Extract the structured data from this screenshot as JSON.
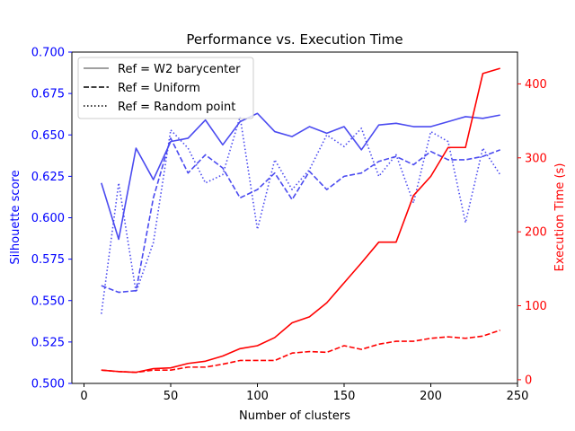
{
  "chart_data": {
    "type": "line",
    "title": "Performance vs. Execution Time",
    "xlabel": "Number of clusters",
    "ylabel_left": "Silhouette score",
    "ylabel_right": "Execution Time (s)",
    "colors": {
      "left_axis": "#0000ff",
      "right_axis": "#ff0000",
      "silhouette_line": "#4b4bf0",
      "time_line": "#ff0000",
      "legend_solid": "#808080"
    },
    "xlim": [
      -7,
      250
    ],
    "ylim_left": [
      0.5,
      0.7
    ],
    "ylim_right": [
      -5,
      443
    ],
    "xticks": [
      0,
      50,
      100,
      150,
      200,
      250
    ],
    "yticks_left": [
      "0.500",
      "0.525",
      "0.550",
      "0.575",
      "0.600",
      "0.625",
      "0.650",
      "0.675",
      "0.700"
    ],
    "yticks_right": [
      0,
      100,
      200,
      300,
      400
    ],
    "legend": {
      "position": "upper left",
      "entries": [
        {
          "label": "Ref = W2 barycenter",
          "style": "solid"
        },
        {
          "label": "Ref = Uniform",
          "style": "dashed"
        },
        {
          "label": "Ref = Random point",
          "style": "dotted"
        }
      ]
    },
    "x": [
      10,
      20,
      30,
      40,
      50,
      60,
      70,
      80,
      90,
      100,
      110,
      120,
      130,
      140,
      150,
      160,
      170,
      180,
      190,
      200,
      210,
      220,
      230,
      240
    ],
    "series": [
      {
        "name": "Ref = W2 barycenter",
        "metric": "silhouette",
        "style": "solid",
        "values": [
          0.621,
          0.587,
          0.642,
          0.623,
          0.646,
          0.648,
          0.659,
          0.644,
          0.658,
          0.663,
          0.652,
          0.649,
          0.655,
          0.651,
          0.655,
          0.641,
          0.656,
          0.657,
          0.655,
          0.655,
          0.658,
          0.661,
          0.66,
          0.662
        ]
      },
      {
        "name": "Ref = Uniform",
        "metric": "silhouette",
        "style": "dashed",
        "values": [
          0.559,
          0.555,
          0.556,
          0.612,
          0.648,
          0.627,
          0.638,
          0.63,
          0.612,
          0.617,
          0.627,
          0.611,
          0.628,
          0.617,
          0.625,
          0.627,
          0.634,
          0.637,
          0.632,
          0.64,
          0.635,
          0.635,
          0.637,
          0.641
        ]
      },
      {
        "name": "Ref = Random point",
        "metric": "silhouette",
        "style": "dotted",
        "values": [
          0.542,
          0.621,
          0.555,
          0.585,
          0.653,
          0.642,
          0.621,
          0.626,
          0.661,
          0.593,
          0.635,
          0.617,
          0.629,
          0.65,
          0.643,
          0.654,
          0.625,
          0.638,
          0.609,
          0.652,
          0.646,
          0.597,
          0.642,
          0.626
        ]
      },
      {
        "name": "Ref = W2 barycenter",
        "metric": "time",
        "style": "solid",
        "values": [
          13,
          11,
          10,
          15,
          16,
          22,
          25,
          32,
          42,
          46,
          57,
          77,
          85,
          104,
          131,
          158,
          186,
          186,
          249,
          275,
          314,
          314,
          414,
          421
        ]
      },
      {
        "name": "Ref = Uniform",
        "metric": "time",
        "style": "dashed",
        "values": [
          13,
          11,
          10,
          13,
          13,
          17,
          17,
          21,
          26,
          26,
          26,
          36,
          38,
          37,
          46,
          41,
          48,
          52,
          52,
          56,
          58,
          56,
          59,
          67
        ]
      }
    ]
  }
}
